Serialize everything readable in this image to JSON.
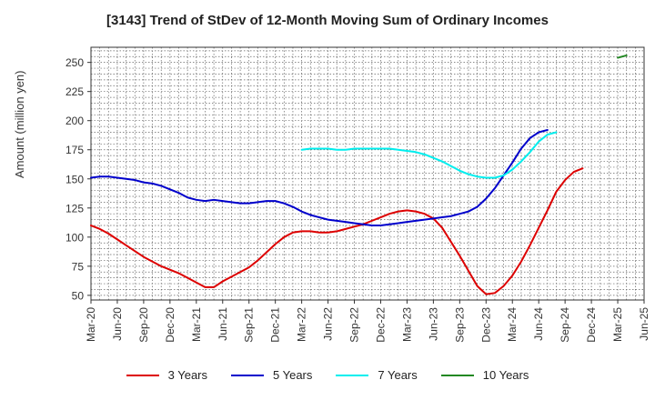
{
  "chart_data": {
    "type": "line",
    "title": "[3143]  Trend of StDev of 12-Month Moving Sum of Ordinary Incomes",
    "xlabel": "",
    "ylabel": "Amount (million yen)",
    "ylim": [
      46,
      263
    ],
    "yticks": [
      50,
      75,
      100,
      125,
      150,
      175,
      200,
      225,
      250
    ],
    "x_categories": [
      "Mar-20",
      "Jun-20",
      "Sep-20",
      "Dec-20",
      "Mar-21",
      "Jun-21",
      "Sep-21",
      "Dec-21",
      "Mar-22",
      "Jun-22",
      "Sep-22",
      "Dec-22",
      "Mar-23",
      "Jun-23",
      "Sep-23",
      "Dec-23",
      "Mar-24",
      "Jun-24",
      "Sep-24",
      "Dec-24",
      "Mar-25",
      "Jun-25"
    ],
    "grid": true,
    "legend_position": "bottom",
    "series": [
      {
        "name": "3 Years",
        "color": "#dd0000",
        "start": "Mar-20",
        "values": [
          110,
          107,
          103,
          98,
          93,
          88,
          83,
          79,
          75,
          72,
          69,
          65,
          61,
          57,
          57,
          62,
          66,
          70,
          74,
          80,
          87,
          94,
          100,
          104,
          105,
          105,
          104,
          104,
          105,
          107,
          109,
          111,
          114,
          117,
          120,
          122,
          123,
          122,
          120,
          116,
          108,
          96,
          84,
          71,
          58,
          51,
          52,
          58,
          67,
          79,
          93,
          108,
          123,
          139,
          149,
          156,
          159
        ]
      },
      {
        "name": "5 Years",
        "color": "#0000cc",
        "start": "Mar-20",
        "values": [
          151,
          152,
          152,
          151,
          150,
          149,
          147,
          146,
          144,
          141,
          138,
          134,
          132,
          131,
          132,
          131,
          130,
          129,
          129,
          130,
          131,
          131,
          129,
          126,
          122,
          119,
          117,
          115,
          114,
          113,
          112,
          111,
          110,
          110,
          111,
          112,
          113,
          114,
          115,
          116,
          117,
          118,
          120,
          122,
          126,
          133,
          142,
          153,
          164,
          176,
          185,
          190,
          192
        ]
      },
      {
        "name": "7 Years",
        "color": "#00eeee",
        "start": "Mar-22",
        "values": [
          175,
          176,
          176,
          176,
          175,
          175,
          176,
          176,
          176,
          176,
          176,
          175,
          174,
          173,
          171,
          168,
          165,
          161,
          157,
          154,
          152,
          151,
          151,
          153,
          158,
          165,
          173,
          182,
          188,
          190
        ]
      },
      {
        "name": "10 Years",
        "color": "#228822",
        "start": "Mar-25",
        "values": [
          254,
          256
        ]
      }
    ]
  }
}
